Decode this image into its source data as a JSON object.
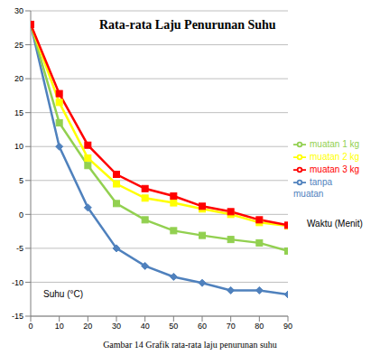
{
  "chart_data": {
    "type": "line",
    "title": "Rata-rata Laju Penurunan Suhu",
    "x_label": "Waktu (Menit)",
    "y_label": "Suhu (°C)",
    "caption": "Gambar 14 Grafik rata-rata laju penurunan suhu",
    "x": [
      0,
      10,
      20,
      30,
      40,
      50,
      60,
      70,
      80,
      90
    ],
    "xlim": [
      0,
      90
    ],
    "xticks": [
      0,
      10,
      20,
      30,
      40,
      50,
      60,
      70,
      80,
      90
    ],
    "ylim": [
      -15,
      30
    ],
    "yticks": [
      -15,
      -10,
      -5,
      0,
      5,
      10,
      15,
      20,
      25,
      30
    ],
    "grid": true,
    "legend": "right",
    "series": [
      {
        "name": "tanpa muatan",
        "color": "#4f81bd",
        "marker": "diamond",
        "values": [
          28,
          10,
          1,
          -5,
          -7.6,
          -9.2,
          -10.1,
          -11.2,
          -11.2,
          -11.8
        ]
      },
      {
        "name": "muatan 1 kg",
        "color": "#92d050",
        "marker": "square",
        "values": [
          28,
          13.5,
          7.2,
          1.6,
          -0.8,
          -2.4,
          -3.1,
          -3.7,
          -4.2,
          -5.4
        ]
      },
      {
        "name": "muatan 2 kg",
        "color": "#ffff00",
        "marker": "square",
        "values": [
          28,
          16.5,
          8.3,
          4.5,
          2.4,
          1.7,
          0.8,
          0,
          -1.2,
          -1.7
        ]
      },
      {
        "name": "muatan 3 kg",
        "color": "#ff0000",
        "marker": "square",
        "values": [
          28,
          17.8,
          10.2,
          5.9,
          3.8,
          2.7,
          1.2,
          0.4,
          -0.8,
          -1.6
        ]
      }
    ]
  }
}
